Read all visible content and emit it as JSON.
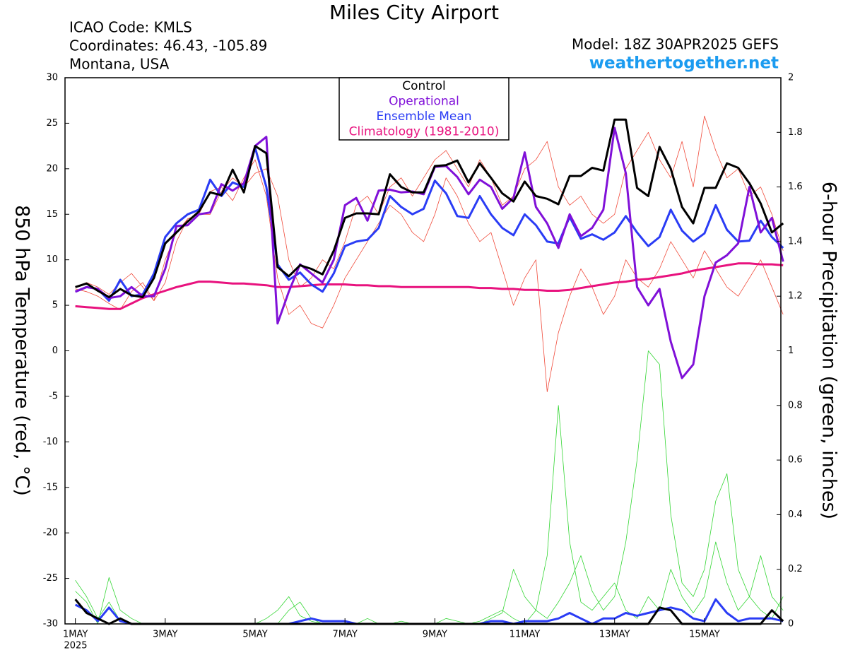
{
  "chart_data": {
    "type": "line",
    "title": "Miles City Airport",
    "info": [
      "ICAO Code: KMLS",
      "Coordinates: 46.43, -105.89",
      "Montana, USA"
    ],
    "model": "Model: 18Z 30APR2025 GEFS",
    "site": "weathertogether.net",
    "year_label": "2025",
    "y_label": "850 hPa Temperature (red, °C)",
    "y2_label": "6-hour Precipitation (green, inches)",
    "xlim": [
      -0.23,
      15.7
    ],
    "xticks": [
      {
        "value": 0,
        "label": "1MAY"
      },
      {
        "value": 2,
        "label": "3MAY"
      },
      {
        "value": 4,
        "label": "5MAY"
      },
      {
        "value": 6,
        "label": "7MAY"
      },
      {
        "value": 8,
        "label": "9MAY"
      },
      {
        "value": 10,
        "label": "11MAY"
      },
      {
        "value": 12,
        "label": "13MAY"
      },
      {
        "value": 14,
        "label": "15MAY"
      }
    ],
    "ylim": [
      -30,
      30
    ],
    "yticks": [
      -30,
      -25,
      -20,
      -15,
      -10,
      -5,
      0,
      5,
      10,
      15,
      20,
      25,
      30
    ],
    "y2lim": [
      0,
      2
    ],
    "y2ticks": [
      0,
      0.2,
      0.4,
      0.6,
      0.8,
      1,
      1.2,
      1.4,
      1.6,
      1.8,
      2
    ],
    "legend": "top-center",
    "x": [
      0,
      0.25,
      0.5,
      0.75,
      1,
      1.25,
      1.5,
      1.75,
      2,
      2.25,
      2.5,
      2.75,
      3,
      3.25,
      3.5,
      3.75,
      4,
      4.25,
      4.5,
      4.75,
      5,
      5.25,
      5.5,
      5.75,
      6,
      6.25,
      6.5,
      6.75,
      7,
      7.25,
      7.5,
      7.75,
      8,
      8.25,
      8.5,
      8.75,
      9,
      9.25,
      9.5,
      9.75,
      10,
      10.25,
      10.5,
      10.75,
      11,
      11.25,
      11.5,
      11.75,
      12,
      12.25,
      12.5,
      12.75,
      13,
      13.25,
      13.5,
      13.75,
      14,
      14.25,
      14.5,
      14.75,
      15,
      15.25,
      15.5,
      15.75
    ],
    "series": [
      {
        "color": "#f04a3a",
        "linewidth": 0.8,
        "values": [
          6.8,
          6.5,
          6.0,
          5.2,
          4.5,
          6.5,
          7.5,
          5.5,
          10,
          13,
          14.5,
          15,
          17.5,
          18,
          16.5,
          19,
          21,
          17,
          8,
          4,
          5,
          3,
          2.5,
          5,
          8,
          10,
          12,
          14,
          16,
          15,
          13,
          12,
          15,
          19,
          17,
          14,
          12,
          13,
          9,
          5,
          8,
          10,
          -4.5,
          2,
          6,
          9,
          7,
          4,
          6,
          10,
          8,
          7,
          9,
          12,
          10,
          8,
          11,
          9,
          7,
          6,
          8,
          10,
          7,
          4
        ]
      },
      {
        "color": "#f04a3a",
        "linewidth": 0.8,
        "values": [
          7,
          7.5,
          7,
          6.2,
          7.5,
          8.5,
          7,
          5.5,
          7.5,
          12,
          14.5,
          15,
          15,
          17.5,
          19,
          18,
          19.5,
          20,
          17,
          10,
          7,
          8,
          10,
          9,
          12,
          16,
          17,
          15,
          18,
          19,
          17,
          19,
          21,
          22,
          20,
          18,
          21,
          19,
          16,
          17,
          20,
          21,
          23,
          18,
          16,
          17,
          15,
          14,
          15,
          20,
          22,
          24,
          21,
          19,
          23,
          18,
          25.8,
          22,
          19,
          20,
          17,
          18,
          15,
          11
        ]
      },
      {
        "color": "#33d633",
        "linewidth": 0.8,
        "axis": "y2",
        "values": [
          0.16,
          0.1,
          0.02,
          0.08,
          0.01,
          0,
          0,
          0,
          0,
          0,
          0,
          0,
          0,
          0,
          0,
          0,
          0,
          0,
          0,
          0.05,
          0.08,
          0.02,
          0,
          0,
          0,
          0,
          0,
          0,
          0,
          0,
          0,
          0,
          0,
          0,
          0,
          0,
          0.01,
          0.03,
          0.05,
          0.02,
          0,
          0.05,
          0.25,
          0.8,
          0.3,
          0.08,
          0.05,
          0.1,
          0.15,
          0.05,
          0.02,
          0.1,
          0.05,
          0.2,
          0.1,
          0.04,
          0.1,
          0.3,
          0.15,
          0.05,
          0.1,
          0.05,
          0.02,
          0.1
        ]
      },
      {
        "color": "#33d633",
        "linewidth": 0.8,
        "axis": "y2",
        "values": [
          0.12,
          0.08,
          0,
          0.17,
          0.05,
          0.02,
          0,
          0,
          0,
          0,
          0,
          0,
          0,
          0,
          0,
          0,
          0,
          0.02,
          0.05,
          0.1,
          0.03,
          0.01,
          0,
          0,
          0,
          0,
          0.02,
          0,
          0,
          0.01,
          0,
          0,
          0,
          0.02,
          0.01,
          0,
          0,
          0.02,
          0.04,
          0.2,
          0.1,
          0.05,
          0.02,
          0.08,
          0.15,
          0.25,
          0.12,
          0.05,
          0.1,
          0.3,
          0.6,
          1,
          0.95,
          0.4,
          0.15,
          0.1,
          0.2,
          0.45,
          0.55,
          0.2,
          0.1,
          0.25,
          0.1,
          0.05
        ]
      },
      {
        "color": "#e8127e",
        "linewidth": 3,
        "name": "Climatology (1981-2010)",
        "values": [
          4.9,
          4.8,
          4.7,
          4.6,
          4.6,
          5.2,
          5.8,
          6.2,
          6.6,
          7.0,
          7.3,
          7.6,
          7.6,
          7.5,
          7.4,
          7.4,
          7.3,
          7.2,
          7.0,
          7.0,
          7.1,
          7.2,
          7.3,
          7.3,
          7.3,
          7.2,
          7.2,
          7.1,
          7.1,
          7.0,
          7.0,
          7.0,
          7.0,
          7.0,
          7.0,
          7.0,
          6.9,
          6.9,
          6.8,
          6.8,
          6.7,
          6.7,
          6.6,
          6.6,
          6.7,
          6.9,
          7.1,
          7.3,
          7.5,
          7.6,
          7.8,
          7.9,
          8.1,
          8.3,
          8.5,
          8.8,
          9.0,
          9.2,
          9.4,
          9.6,
          9.6,
          9.5,
          9.5,
          9.4
        ]
      },
      {
        "color": "#2a3cf5",
        "linewidth": 3,
        "name": "Ensemble Mean",
        "values": [
          6.5,
          7.0,
          6.8,
          5.5,
          7.8,
          6.0,
          6.2,
          8.5,
          12.5,
          14,
          15,
          15.5,
          18.8,
          17,
          18.5,
          18,
          22.3,
          18,
          9.5,
          7.8,
          8.6,
          7.3,
          6.5,
          8.5,
          11.5,
          12,
          12.2,
          13.5,
          17,
          15.8,
          15,
          15.6,
          18.7,
          17.3,
          14.8,
          14.6,
          17,
          15,
          13.5,
          12.7,
          15,
          13.8,
          12,
          11.8,
          14.7,
          12.3,
          12.8,
          12.2,
          13,
          14.8,
          13,
          11.5,
          12.5,
          15.5,
          13.2,
          12,
          12.9,
          16,
          13.3,
          12,
          12.1,
          14.3,
          12.5,
          11.3
        ]
      },
      {
        "color": "#8010d8",
        "linewidth": 3,
        "name": "Operational",
        "values": [
          6.5,
          7.0,
          6.8,
          5.8,
          6.0,
          7.0,
          6.0,
          6.0,
          9,
          13.7,
          13.8,
          15,
          15.2,
          18.3,
          17.6,
          18.4,
          22.5,
          23.5,
          3,
          6.5,
          9.5,
          8.5,
          7.5,
          10,
          16,
          16.8,
          14.3,
          17.6,
          17.7,
          17.4,
          17.5,
          17.2,
          20.2,
          20.3,
          19.1,
          17.2,
          18.8,
          18,
          15.6,
          16.8,
          21.8,
          15.8,
          14,
          11.3,
          15,
          12.6,
          13.5,
          15.5,
          24.5,
          19.5,
          7,
          5,
          6.8,
          1,
          -3,
          -1.5,
          6,
          9.7,
          10.5,
          11.8,
          18,
          13,
          14.6,
          9.8
        ]
      },
      {
        "color": "#000000",
        "linewidth": 3,
        "name": "Control",
        "values": [
          7,
          7.4,
          6.6,
          5.9,
          6.8,
          6.1,
          5.9,
          8.0,
          11.8,
          13,
          14.2,
          15.3,
          17.4,
          17.1,
          19.9,
          17.4,
          22.5,
          21.7,
          9.2,
          8.2,
          9.4,
          9.0,
          8.4,
          11,
          14.6,
          15.1,
          15.1,
          15,
          19.4,
          18,
          17.4,
          17.4,
          20.3,
          20.4,
          20.9,
          18.5,
          20.6,
          19,
          17.3,
          16.4,
          18.6,
          17,
          16.7,
          16.1,
          19.2,
          19.2,
          20.1,
          19.8,
          25.4,
          25.4,
          17.9,
          17,
          22.4,
          20,
          15.8,
          14,
          17.9,
          17.9,
          20.6,
          20.1,
          18.4,
          16.2,
          13,
          14
        ]
      },
      {
        "color": "#2a3cf5",
        "linewidth": 3,
        "axis": "y2",
        "values": [
          0.07,
          0.05,
          0.01,
          0.06,
          0.01,
          0,
          0,
          0,
          0,
          0,
          0,
          0,
          0,
          0,
          0,
          0,
          0,
          0,
          0,
          0,
          0.01,
          0.02,
          0.01,
          0.01,
          0.01,
          0,
          0,
          0,
          0,
          0,
          0,
          0,
          0,
          0,
          0,
          0,
          0,
          0.01,
          0.01,
          0,
          0.01,
          0.01,
          0.01,
          0.02,
          0.04,
          0.02,
          0,
          0.02,
          0.02,
          0.04,
          0.03,
          0.04,
          0.05,
          0.06,
          0.05,
          0.02,
          0.01,
          0.09,
          0.04,
          0.01,
          0.02,
          0.02,
          0.02,
          0.01
        ]
      },
      {
        "color": "#000000",
        "linewidth": 3,
        "axis": "y2",
        "values": [
          0.09,
          0.04,
          0.02,
          0,
          0.02,
          0,
          0,
          0,
          0,
          0,
          0,
          0,
          0,
          0,
          0,
          0,
          0,
          0,
          0,
          0,
          0,
          0,
          0,
          0,
          0,
          0,
          0,
          0,
          0,
          0,
          0,
          0,
          0,
          0,
          0,
          0,
          0,
          0,
          0,
          0,
          0,
          0,
          0,
          0,
          0,
          0,
          0,
          0,
          0,
          0,
          0,
          0,
          0.06,
          0.05,
          0,
          0,
          0,
          0,
          0,
          0,
          0,
          0,
          0.05,
          0.01
        ]
      }
    ]
  }
}
